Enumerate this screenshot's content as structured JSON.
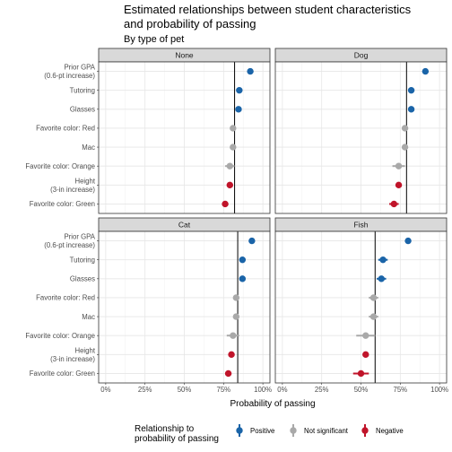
{
  "title": "Estimated relationships between student characteristics and probability of passing",
  "title_lines": [
    "Estimated relationships between student characteristics",
    "and probability of passing"
  ],
  "subtitle": "By type of pet",
  "colors": {
    "positive": "#1a64a8",
    "not_significant": "#a9a9a9",
    "negative": "#c0142a"
  },
  "legend": {
    "title_lines": [
      "Relationship to",
      "probability of passing"
    ],
    "items": [
      {
        "key": "positive",
        "label": "Positive"
      },
      {
        "key": "not_significant",
        "label": "Not significant"
      },
      {
        "key": "negative",
        "label": "Negative"
      }
    ]
  },
  "chart_data": {
    "type": "scatter",
    "title": "Estimated relationships between student characteristics and probability of passing",
    "subtitle": "By type of pet",
    "xlabel": "Probability of passing",
    "ylabel": "",
    "xlim": [
      0,
      1
    ],
    "x_ticks": [
      0,
      0.25,
      0.5,
      0.75,
      1.0
    ],
    "x_tick_labels": [
      "0%",
      "25%",
      "50%",
      "75%",
      "100%"
    ],
    "categories": [
      "Prior GPA\n(0.6-pt increase)",
      "Tutoring",
      "Glasses",
      "Favorite color: Red",
      "Mac",
      "Favorite color: Orange",
      "Height\n(3-in increase)",
      "Favorite color: Green"
    ],
    "grid": true,
    "facets": [
      {
        "name": "None",
        "baseline": 0.82,
        "points": [
          {
            "x": 0.92,
            "lo": 0.91,
            "hi": 0.93,
            "sig": "positive"
          },
          {
            "x": 0.85,
            "lo": 0.84,
            "hi": 0.86,
            "sig": "positive"
          },
          {
            "x": 0.845,
            "lo": 0.835,
            "hi": 0.855,
            "sig": "positive"
          },
          {
            "x": 0.81,
            "lo": 0.8,
            "hi": 0.82,
            "sig": "not_significant"
          },
          {
            "x": 0.81,
            "lo": 0.8,
            "hi": 0.82,
            "sig": "not_significant"
          },
          {
            "x": 0.79,
            "lo": 0.76,
            "hi": 0.82,
            "sig": "not_significant"
          },
          {
            "x": 0.79,
            "lo": 0.78,
            "hi": 0.8,
            "sig": "negative"
          },
          {
            "x": 0.76,
            "lo": 0.74,
            "hi": 0.78,
            "sig": "negative"
          }
        ]
      },
      {
        "name": "Dog",
        "baseline": 0.79,
        "points": [
          {
            "x": 0.91,
            "lo": 0.9,
            "hi": 0.92,
            "sig": "positive"
          },
          {
            "x": 0.82,
            "lo": 0.81,
            "hi": 0.83,
            "sig": "positive"
          },
          {
            "x": 0.82,
            "lo": 0.81,
            "hi": 0.83,
            "sig": "positive"
          },
          {
            "x": 0.78,
            "lo": 0.76,
            "hi": 0.8,
            "sig": "not_significant"
          },
          {
            "x": 0.78,
            "lo": 0.77,
            "hi": 0.79,
            "sig": "not_significant"
          },
          {
            "x": 0.74,
            "lo": 0.7,
            "hi": 0.78,
            "sig": "not_significant"
          },
          {
            "x": 0.74,
            "lo": 0.73,
            "hi": 0.75,
            "sig": "negative"
          },
          {
            "x": 0.71,
            "lo": 0.68,
            "hi": 0.74,
            "sig": "negative"
          }
        ]
      },
      {
        "name": "Cat",
        "baseline": 0.84,
        "points": [
          {
            "x": 0.93,
            "lo": 0.92,
            "hi": 0.94,
            "sig": "positive"
          },
          {
            "x": 0.87,
            "lo": 0.86,
            "hi": 0.88,
            "sig": "positive"
          },
          {
            "x": 0.87,
            "lo": 0.86,
            "hi": 0.88,
            "sig": "positive"
          },
          {
            "x": 0.83,
            "lo": 0.82,
            "hi": 0.84,
            "sig": "not_significant"
          },
          {
            "x": 0.83,
            "lo": 0.82,
            "hi": 0.84,
            "sig": "not_significant"
          },
          {
            "x": 0.81,
            "lo": 0.77,
            "hi": 0.85,
            "sig": "not_significant"
          },
          {
            "x": 0.8,
            "lo": 0.79,
            "hi": 0.81,
            "sig": "negative"
          },
          {
            "x": 0.78,
            "lo": 0.76,
            "hi": 0.8,
            "sig": "negative"
          }
        ]
      },
      {
        "name": "Fish",
        "baseline": 0.59,
        "points": [
          {
            "x": 0.8,
            "lo": 0.79,
            "hi": 0.81,
            "sig": "positive"
          },
          {
            "x": 0.64,
            "lo": 0.61,
            "hi": 0.67,
            "sig": "positive"
          },
          {
            "x": 0.63,
            "lo": 0.6,
            "hi": 0.66,
            "sig": "positive"
          },
          {
            "x": 0.58,
            "lo": 0.55,
            "hi": 0.61,
            "sig": "not_significant"
          },
          {
            "x": 0.58,
            "lo": 0.55,
            "hi": 0.61,
            "sig": "not_significant"
          },
          {
            "x": 0.53,
            "lo": 0.47,
            "hi": 0.59,
            "sig": "not_significant"
          },
          {
            "x": 0.53,
            "lo": 0.52,
            "hi": 0.54,
            "sig": "negative"
          },
          {
            "x": 0.5,
            "lo": 0.45,
            "hi": 0.55,
            "sig": "negative"
          }
        ]
      }
    ]
  }
}
